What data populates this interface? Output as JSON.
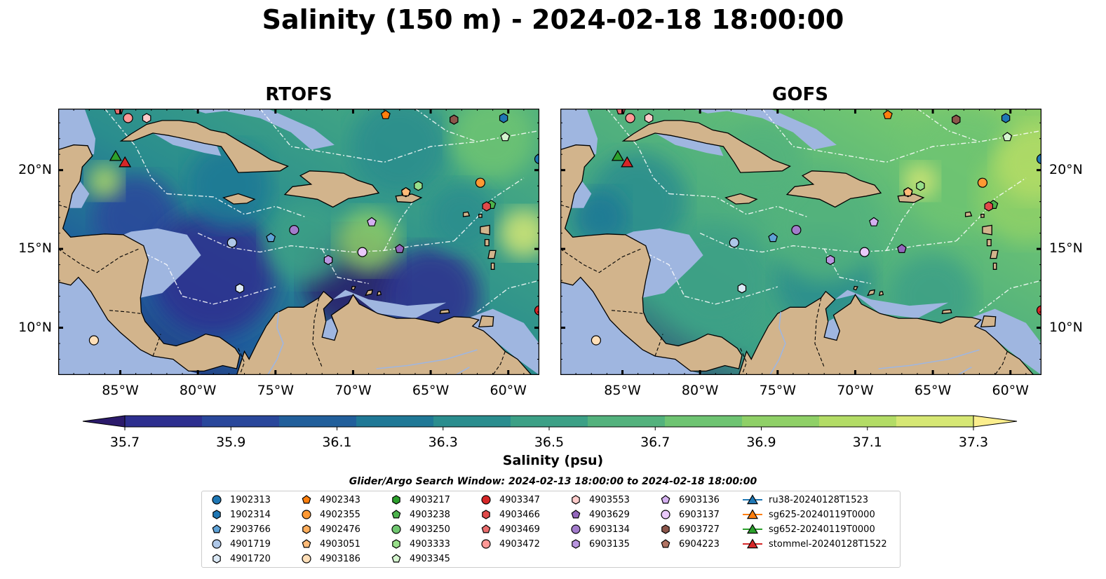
{
  "title": "Salinity (150 m) - 2024-02-18 18:00:00",
  "panels": [
    {
      "title": "RTOFS"
    },
    {
      "title": "GOFS"
    }
  ],
  "lon_ticks": [
    "85°W",
    "80°W",
    "75°W",
    "70°W",
    "65°W",
    "60°W"
  ],
  "lat_ticks": [
    "20°N",
    "15°N",
    "10°N"
  ],
  "colorbar": {
    "label": "Salinity (psu)",
    "min": 35.7,
    "max": 37.3,
    "tick_labels": [
      "35.7",
      "35.9",
      "36.1",
      "36.3",
      "36.5",
      "36.7",
      "36.9",
      "37.1",
      "37.3"
    ],
    "extend": "both",
    "colors": [
      "#2b1a6b",
      "#2d2f8f",
      "#29479b",
      "#215f9b",
      "#1f7896",
      "#2a8d8e",
      "#3ca086",
      "#53b27d",
      "#6ec472",
      "#8fd067",
      "#b3dc66",
      "#d6e774",
      "#fbee8d"
    ]
  },
  "search_window": "Glider/Argo Search Window: 2024-02-13 18:00:00 to 2024-02-18 18:00:00",
  "legend": {
    "columns": [
      [
        {
          "label": "1902313",
          "marker": "circle",
          "color": "#1f77b4"
        },
        {
          "label": "1902314",
          "marker": "hexagon",
          "color": "#1f77b4"
        },
        {
          "label": "2903766",
          "marker": "pentagon",
          "color": "#5fa2d6"
        },
        {
          "label": "4901719",
          "marker": "circle",
          "color": "#aec7e8"
        },
        {
          "label": "4901720",
          "marker": "hexagon",
          "color": "#dbe9f6"
        }
      ],
      [
        {
          "label": "4902343",
          "marker": "pentagon",
          "color": "#ff7f0e"
        },
        {
          "label": "4902355",
          "marker": "circle",
          "color": "#ff9933"
        },
        {
          "label": "4902476",
          "marker": "hexagon",
          "color": "#ffae5c"
        },
        {
          "label": "4903051",
          "marker": "pentagon",
          "color": "#ffbb78"
        },
        {
          "label": "4903186",
          "marker": "circle",
          "color": "#ffdfb8"
        }
      ],
      [
        {
          "label": "4903217",
          "marker": "hexagon",
          "color": "#2ca02c"
        },
        {
          "label": "4903238",
          "marker": "pentagon",
          "color": "#4cb34c"
        },
        {
          "label": "4903250",
          "marker": "circle",
          "color": "#70c770"
        },
        {
          "label": "4903333",
          "marker": "hexagon",
          "color": "#98df8a"
        },
        {
          "label": "4903345",
          "marker": "pentagon",
          "color": "#d5f5cf"
        }
      ],
      [
        {
          "label": "4903347",
          "marker": "circle",
          "color": "#d62728"
        },
        {
          "label": "4903466",
          "marker": "hexagon",
          "color": "#e04a4a"
        },
        {
          "label": "4903469",
          "marker": "pentagon",
          "color": "#ea6e6e"
        },
        {
          "label": "4903472",
          "marker": "circle",
          "color": "#ff9896"
        }
      ],
      [
        {
          "label": "4903553",
          "marker": "hexagon",
          "color": "#ffcccb"
        },
        {
          "label": "4903629",
          "marker": "pentagon",
          "color": "#9467bd"
        },
        {
          "label": "6903134",
          "marker": "circle",
          "color": "#a37ccc"
        },
        {
          "label": "6903135",
          "marker": "hexagon",
          "color": "#b995e0"
        }
      ],
      [
        {
          "label": "6903136",
          "marker": "pentagon",
          "color": "#d4b0f0"
        },
        {
          "label": "6903137",
          "marker": "circle",
          "color": "#eac9fa"
        },
        {
          "label": "6903727",
          "marker": "hexagon",
          "color": "#8c564b"
        },
        {
          "label": "6904223",
          "marker": "pentagon",
          "color": "#b07262"
        }
      ],
      [
        {
          "label": "ru38-20240128T1523",
          "marker": "triangle-line",
          "color": "#1f77b4"
        },
        {
          "label": "sg625-20240119T0000",
          "marker": "triangle-line",
          "color": "#ff7f0e"
        },
        {
          "label": "sg652-20240119T0000",
          "marker": "triangle-line",
          "color": "#2ca02c"
        },
        {
          "label": "stommel-20240128T1522",
          "marker": "triangle-line",
          "color": "#d62728"
        }
      ]
    ]
  },
  "map_colors": {
    "land": "#d2b48c",
    "shelf": "#9fb6e0",
    "coast": "#000000"
  },
  "floats": [
    {
      "id": "1902313",
      "lon": -58.0,
      "lat": 20.7
    },
    {
      "id": "1902314",
      "lon": -60.3,
      "lat": 23.3
    },
    {
      "id": "2903766",
      "lon": -75.3,
      "lat": 15.7
    },
    {
      "id": "4901719",
      "lon": -77.8,
      "lat": 15.4
    },
    {
      "id": "4901720",
      "lon": -77.3,
      "lat": 12.5
    },
    {
      "id": "4902343",
      "lon": -67.9,
      "lat": 23.5
    },
    {
      "id": "4902355",
      "lon": -61.8,
      "lat": 19.2
    },
    {
      "id": "4902476",
      "lon": -66.6,
      "lat": 18.6
    },
    {
      "id": "4903051",
      "lon": -66.6,
      "lat": 18.6
    },
    {
      "id": "4903186",
      "lon": -86.7,
      "lat": 9.2
    },
    {
      "id": "4903217",
      "lon": -63.5,
      "lat": 23.2
    },
    {
      "id": "4903238",
      "lon": -61.1,
      "lat": 17.8
    },
    {
      "id": "4903333",
      "lon": -65.8,
      "lat": 19.0
    },
    {
      "id": "4903345",
      "lon": -60.2,
      "lat": 22.1
    },
    {
      "id": "4903347",
      "lon": -58.0,
      "lat": 11.1
    },
    {
      "id": "4903466",
      "lon": -61.4,
      "lat": 17.7
    },
    {
      "id": "4903469",
      "lon": -85.1,
      "lat": 23.8
    },
    {
      "id": "4903472",
      "lon": -84.5,
      "lat": 23.3
    },
    {
      "id": "4903553",
      "lon": -83.3,
      "lat": 23.3
    },
    {
      "id": "4903629",
      "lon": -67.0,
      "lat": 15.0
    },
    {
      "id": "6903134",
      "lon": -73.8,
      "lat": 16.2
    },
    {
      "id": "6903135",
      "lon": -71.6,
      "lat": 14.3
    },
    {
      "id": "6903136",
      "lon": -68.8,
      "lat": 16.7
    },
    {
      "id": "6903137",
      "lon": -69.4,
      "lat": 14.8
    },
    {
      "id": "6903727",
      "lon": -63.5,
      "lat": 23.2
    }
  ],
  "gliders": [
    {
      "id": "sg652-20240119T0000",
      "lon": -85.3,
      "lat": 20.9
    },
    {
      "id": "stommel-20240128T1522",
      "lon": -84.7,
      "lat": 20.5
    }
  ]
}
